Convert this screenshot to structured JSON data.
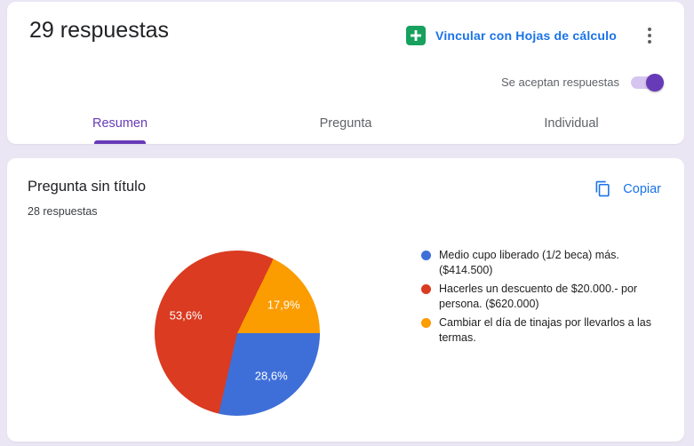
{
  "header": {
    "title": "29 respuestas",
    "sheets_link_label": "Vincular con Hojas de cálculo",
    "accepting_label": "Se aceptan respuestas",
    "accepting_on": true
  },
  "tabs": {
    "summary": "Resumen",
    "question": "Pregunta",
    "individual": "Individual",
    "active": "Resumen"
  },
  "question": {
    "title": "Pregunta sin título",
    "responses_count": "28 respuestas",
    "copy_label": "Copiar"
  },
  "chart_data": {
    "type": "pie",
    "title": "Pregunta sin título",
    "subtitle": "28 respuestas",
    "legend_position": "right",
    "start_angle_deg": 90,
    "series": [
      {
        "label": "Medio cupo liberado (1/2 beca) más. ($414.500)",
        "percent": 28.6,
        "slice_label": "28,6%",
        "color": "#3e6fd9"
      },
      {
        "label": "Hacerles un descuento de $20.000.- por persona. ($620.000)",
        "percent": 53.6,
        "slice_label": "53,6%",
        "color": "#da3b21"
      },
      {
        "label": "Cambiar el día de tinajas por llevarlos a las termas.",
        "percent": 17.9,
        "slice_label": "17,9%",
        "color": "#fb9c00"
      }
    ]
  },
  "colors": {
    "accent_purple": "#673ab7",
    "link_blue": "#1a73e8",
    "sheets_green": "#17a05e",
    "page_background": "#ebe6f4"
  }
}
